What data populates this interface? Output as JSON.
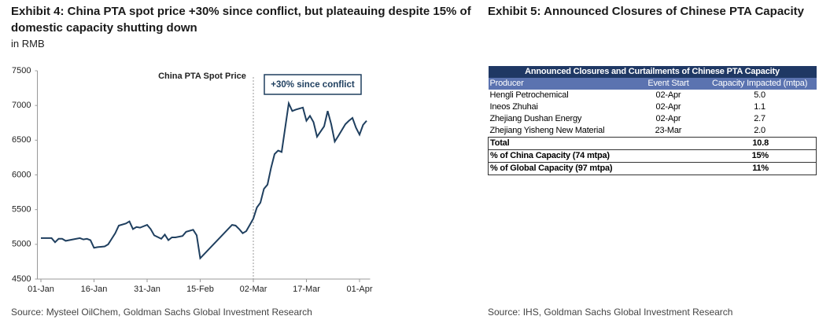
{
  "exhibit4": {
    "title": "Exhibit 4: China PTA spot price +30% since conflict, but plateauing despite 15% of domestic capacity shutting down",
    "subtitle": "in RMB",
    "source": "Source: Mysteel OilChem, Goldman Sachs Global Investment Research"
  },
  "chart_data": {
    "type": "line",
    "x": [
      0,
      2,
      3,
      4,
      5,
      6,
      7,
      9,
      11,
      12,
      13,
      14,
      15,
      16,
      18,
      19,
      20,
      21,
      22,
      24,
      25,
      26,
      27,
      28,
      30,
      31,
      32,
      34,
      35,
      36,
      37,
      38,
      40,
      41,
      43,
      44,
      45,
      54,
      55,
      56,
      57,
      58,
      59,
      60,
      61,
      62,
      63,
      64,
      65,
      66,
      67,
      68,
      70,
      71,
      72,
      74,
      75,
      76,
      77,
      78,
      80,
      81,
      82,
      83,
      84,
      86,
      87,
      88,
      89,
      90,
      91,
      92
    ],
    "series": [
      {
        "name": "China PTA Spot Price",
        "color": "#1f3f5f",
        "values": [
          5090,
          5090,
          5090,
          5030,
          5080,
          5080,
          5050,
          5070,
          5090,
          5070,
          5080,
          5060,
          4950,
          4960,
          4970,
          5000,
          5080,
          5160,
          5270,
          5300,
          5330,
          5220,
          5250,
          5240,
          5280,
          5220,
          5130,
          5080,
          5140,
          5060,
          5100,
          5100,
          5120,
          5180,
          5210,
          5130,
          4800,
          5280,
          5270,
          5220,
          5160,
          5190,
          5280,
          5370,
          5530,
          5600,
          5800,
          5860,
          6100,
          6300,
          6350,
          6330,
          7030,
          6920,
          6940,
          6970,
          6780,
          6850,
          6760,
          6550,
          6700,
          6920,
          6730,
          6480,
          6560,
          6730,
          6780,
          6820,
          6680,
          6580,
          6720,
          6780
        ]
      }
    ],
    "xlim": [
      -1,
      93
    ],
    "xticks": [
      {
        "value": 0,
        "label": "01-Jan"
      },
      {
        "value": 15,
        "label": "16-Jan"
      },
      {
        "value": 30,
        "label": "31-Jan"
      },
      {
        "value": 45,
        "label": "15-Feb"
      },
      {
        "value": 60,
        "label": "02-Mar"
      },
      {
        "value": 75,
        "label": "17-Mar"
      },
      {
        "value": 90,
        "label": "01-Apr"
      }
    ],
    "ylim": [
      4500,
      7500
    ],
    "yticks": [
      4500,
      5000,
      5500,
      6000,
      6500,
      7000,
      7500
    ],
    "annotation": {
      "text": "+30% since conflict",
      "x": 60
    }
  },
  "exhibit5": {
    "title": "Exhibit 5: Announced Closures of Chinese PTA Capacity",
    "source": "Source: IHS, Goldman Sachs Global Investment Research",
    "table": {
      "title": "Announced Closures and Curtailments of Chinese PTA Capacity",
      "header": [
        "Producer",
        "Event Start",
        "Capacity Impacted (mtpa)"
      ],
      "rows": [
        [
          "Hengli Petrochemical",
          "02-Apr",
          "5.0"
        ],
        [
          "Ineos Zhuhai",
          "02-Apr",
          "1.1"
        ],
        [
          "Zhejiang Dushan Energy",
          "02-Apr",
          "2.7"
        ],
        [
          "Zhejiang Yisheng New Material",
          "23-Mar",
          "2.0"
        ]
      ],
      "summary_rows": [
        [
          "Total",
          "10.8"
        ],
        [
          "% of China Capacity (74 mtpa)",
          "15%"
        ],
        [
          "% of Global Capacity (97 mtpa)",
          "11%"
        ]
      ]
    }
  }
}
